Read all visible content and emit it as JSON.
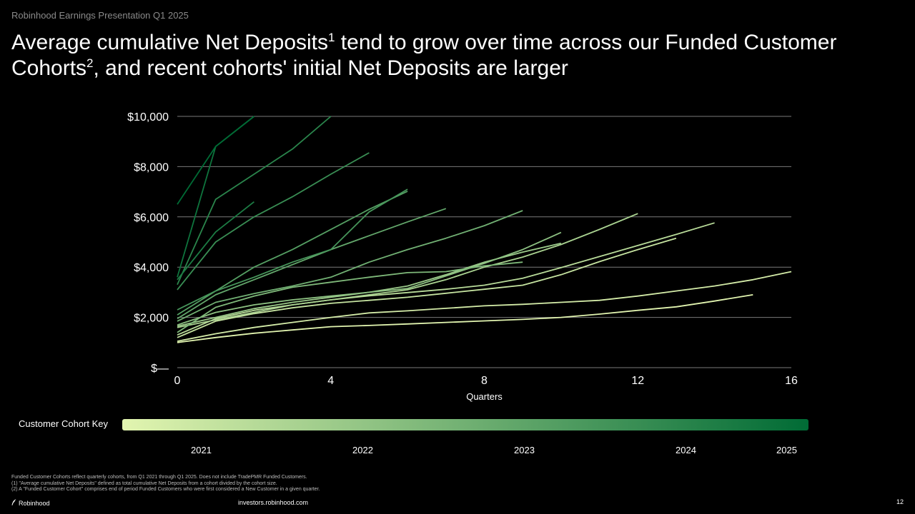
{
  "header": {
    "presentation_title": "Robinhood Earnings Presentation Q1 2025",
    "title_part1": "Average cumulative Net Deposits",
    "title_sup1": "1",
    "title_part2": " tend to grow over time across our Funded Customer Cohorts",
    "title_sup2": "2",
    "title_part3": ", and recent cohorts' initial Net Deposits are larger"
  },
  "chart_data": {
    "type": "line",
    "xlabel": "Quarters",
    "ylabel": "",
    "xlim": [
      0,
      16
    ],
    "ylim": [
      0,
      10000
    ],
    "x_ticks": [
      0,
      4,
      8,
      12,
      16
    ],
    "x_tick_labels": [
      "0",
      "4",
      "8",
      "12",
      "16"
    ],
    "y_ticks": [
      0,
      2000,
      4000,
      6000,
      8000,
      10000
    ],
    "y_tick_labels": [
      "$—",
      "$2,000",
      "$4,000",
      "$6,000",
      "$8,000",
      "$10,000"
    ],
    "grid": "horizontal",
    "color_scale": {
      "start": "#e2f5b0",
      "end": "#006b35"
    },
    "series": [
      {
        "values": [
          1000,
          1200,
          1370,
          1500,
          1630,
          1680,
          1740,
          1800,
          1860,
          1920,
          2000,
          2130,
          2280,
          2420,
          2650,
          2900
        ]
      },
      {
        "values": [
          1050,
          1350,
          1600,
          1800,
          2000,
          2180,
          2260,
          2360,
          2460,
          2520,
          2600,
          2680,
          2850,
          3050,
          3250,
          3500,
          3820
        ]
      },
      {
        "values": [
          1200,
          1850,
          2150,
          2380,
          2560,
          2680,
          2800,
          2960,
          3120,
          3280,
          3700,
          4220,
          4700,
          5150
        ]
      },
      {
        "values": [
          1300,
          1950,
          2280,
          2500,
          2700,
          2860,
          2990,
          3120,
          3280,
          3560,
          3980,
          4420,
          4860,
          5300,
          5760
        ]
      },
      {
        "values": [
          1600,
          1900,
          2200,
          2500,
          2700,
          2900,
          3100,
          3500,
          4000,
          4400,
          4900,
          5500,
          6130
        ]
      },
      {
        "values": [
          1650,
          2000,
          2350,
          2600,
          2800,
          3000,
          3250,
          3700,
          4200,
          4600,
          4950
        ]
      },
      {
        "values": [
          1700,
          2200,
          2500,
          2700,
          2850,
          3000,
          3150,
          3650,
          4150,
          4700,
          5380
        ]
      },
      {
        "values": [
          1400,
          2400,
          2850,
          3200,
          3400,
          3600,
          3780,
          3820,
          4050,
          4200
        ]
      },
      {
        "values": [
          1850,
          2600,
          2950,
          3250,
          3600,
          4200,
          4700,
          5150,
          5650,
          6250
        ]
      },
      {
        "values": [
          1950,
          2900,
          3500,
          4100,
          4700,
          5250,
          5800,
          6330
        ]
      },
      {
        "values": [
          2100,
          3050,
          4000,
          4700,
          5500,
          6300,
          7020
        ]
      },
      {
        "values": [
          2300,
          3050,
          3600,
          4200,
          4700,
          6200,
          7100
        ]
      },
      {
        "values": [
          3100,
          5000,
          6000,
          6800,
          7700,
          8550
        ]
      },
      {
        "values": [
          3300,
          6700,
          7700,
          8700,
          10000
        ]
      },
      {
        "values": [
          3500,
          5400,
          6600
        ]
      },
      {
        "values": [
          3600,
          8800,
          10000
        ]
      },
      {
        "values": [
          6500,
          8800,
          10000
        ]
      }
    ]
  },
  "key": {
    "label": "Customer Cohort Key",
    "years": [
      "2021",
      "2022",
      "2023",
      "2024",
      "2025"
    ]
  },
  "footnotes": [
    "Funded Customer Cohorts reflect quarterly cohorts, from Q1 2021 through Q1 2025. Does not include TradePMR Funded Customers.",
    "(1) \"Average cumulative Net Deposits\" defined as total cumulative Net Deposits from a cohort divided by the cohort size.",
    "(2) A \"Funded Customer Cohort\" comprises end of period Funded Customers who were first considered a New Customer in a given quarter."
  ],
  "footer": {
    "logo_text": "Robinhood",
    "url": "investors.robinhood.com",
    "page_number": "12"
  }
}
